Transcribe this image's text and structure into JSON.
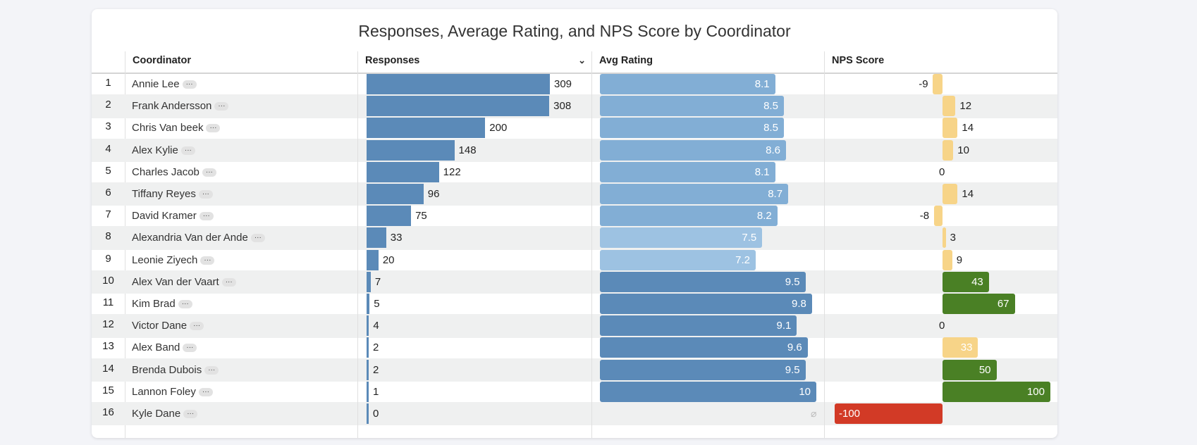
{
  "title": "Responses, Average Rating, and NPS Score by Coordinator",
  "columns": {
    "coordinator": "Coordinator",
    "responses": "Responses",
    "avg_rating": "Avg Rating",
    "nps": "NPS Score"
  },
  "sort_icon": "chevron-down-icon",
  "more_label": "···",
  "null_symbol": "⌀",
  "colors": {
    "responses": "#5b8ab8",
    "rating_low": "#9dc2e2",
    "rating_mid": "#82aed5",
    "rating_high": "#5b8ab8",
    "nps_neutral": "#f7d488",
    "nps_good": "#4a8025",
    "nps_bad": "#d23a26"
  },
  "rows": [
    {
      "index": "1",
      "name": "Annie Lee",
      "responses": 309,
      "avg_rating": 8.1,
      "nps": -9
    },
    {
      "index": "2",
      "name": "Frank Andersson",
      "responses": 308,
      "avg_rating": 8.5,
      "nps": 12
    },
    {
      "index": "3",
      "name": "Chris Van beek",
      "responses": 200,
      "avg_rating": 8.5,
      "nps": 14
    },
    {
      "index": "4",
      "name": "Alex Kylie",
      "responses": 148,
      "avg_rating": 8.6,
      "nps": 10
    },
    {
      "index": "5",
      "name": "Charles Jacob",
      "responses": 122,
      "avg_rating": 8.1,
      "nps": 0
    },
    {
      "index": "6",
      "name": "Tiffany Reyes",
      "responses": 96,
      "avg_rating": 8.7,
      "nps": 14
    },
    {
      "index": "7",
      "name": "David Kramer",
      "responses": 75,
      "avg_rating": 8.2,
      "nps": -8
    },
    {
      "index": "8",
      "name": "Alexandria Van der Ande",
      "responses": 33,
      "avg_rating": 7.5,
      "nps": 3
    },
    {
      "index": "9",
      "name": "Leonie Ziyech",
      "responses": 20,
      "avg_rating": 7.2,
      "nps": 9
    },
    {
      "index": "10",
      "name": "Alex Van der Vaart",
      "responses": 7,
      "avg_rating": 9.5,
      "nps": 43
    },
    {
      "index": "11",
      "name": "Kim Brad",
      "responses": 5,
      "avg_rating": 9.8,
      "nps": 67
    },
    {
      "index": "12",
      "name": "Victor Dane",
      "responses": 4,
      "avg_rating": 9.1,
      "nps": 0
    },
    {
      "index": "13",
      "name": "Alex Band",
      "responses": 2,
      "avg_rating": 9.6,
      "nps": 33
    },
    {
      "index": "14",
      "name": "Brenda Dubois",
      "responses": 2,
      "avg_rating": 9.5,
      "nps": 50
    },
    {
      "index": "15",
      "name": "Lannon Foley",
      "responses": 1,
      "avg_rating": 10,
      "nps": 100
    },
    {
      "index": "16",
      "name": "Kyle Dane",
      "responses": 0,
      "avg_rating": null,
      "nps": -100
    }
  ]
}
